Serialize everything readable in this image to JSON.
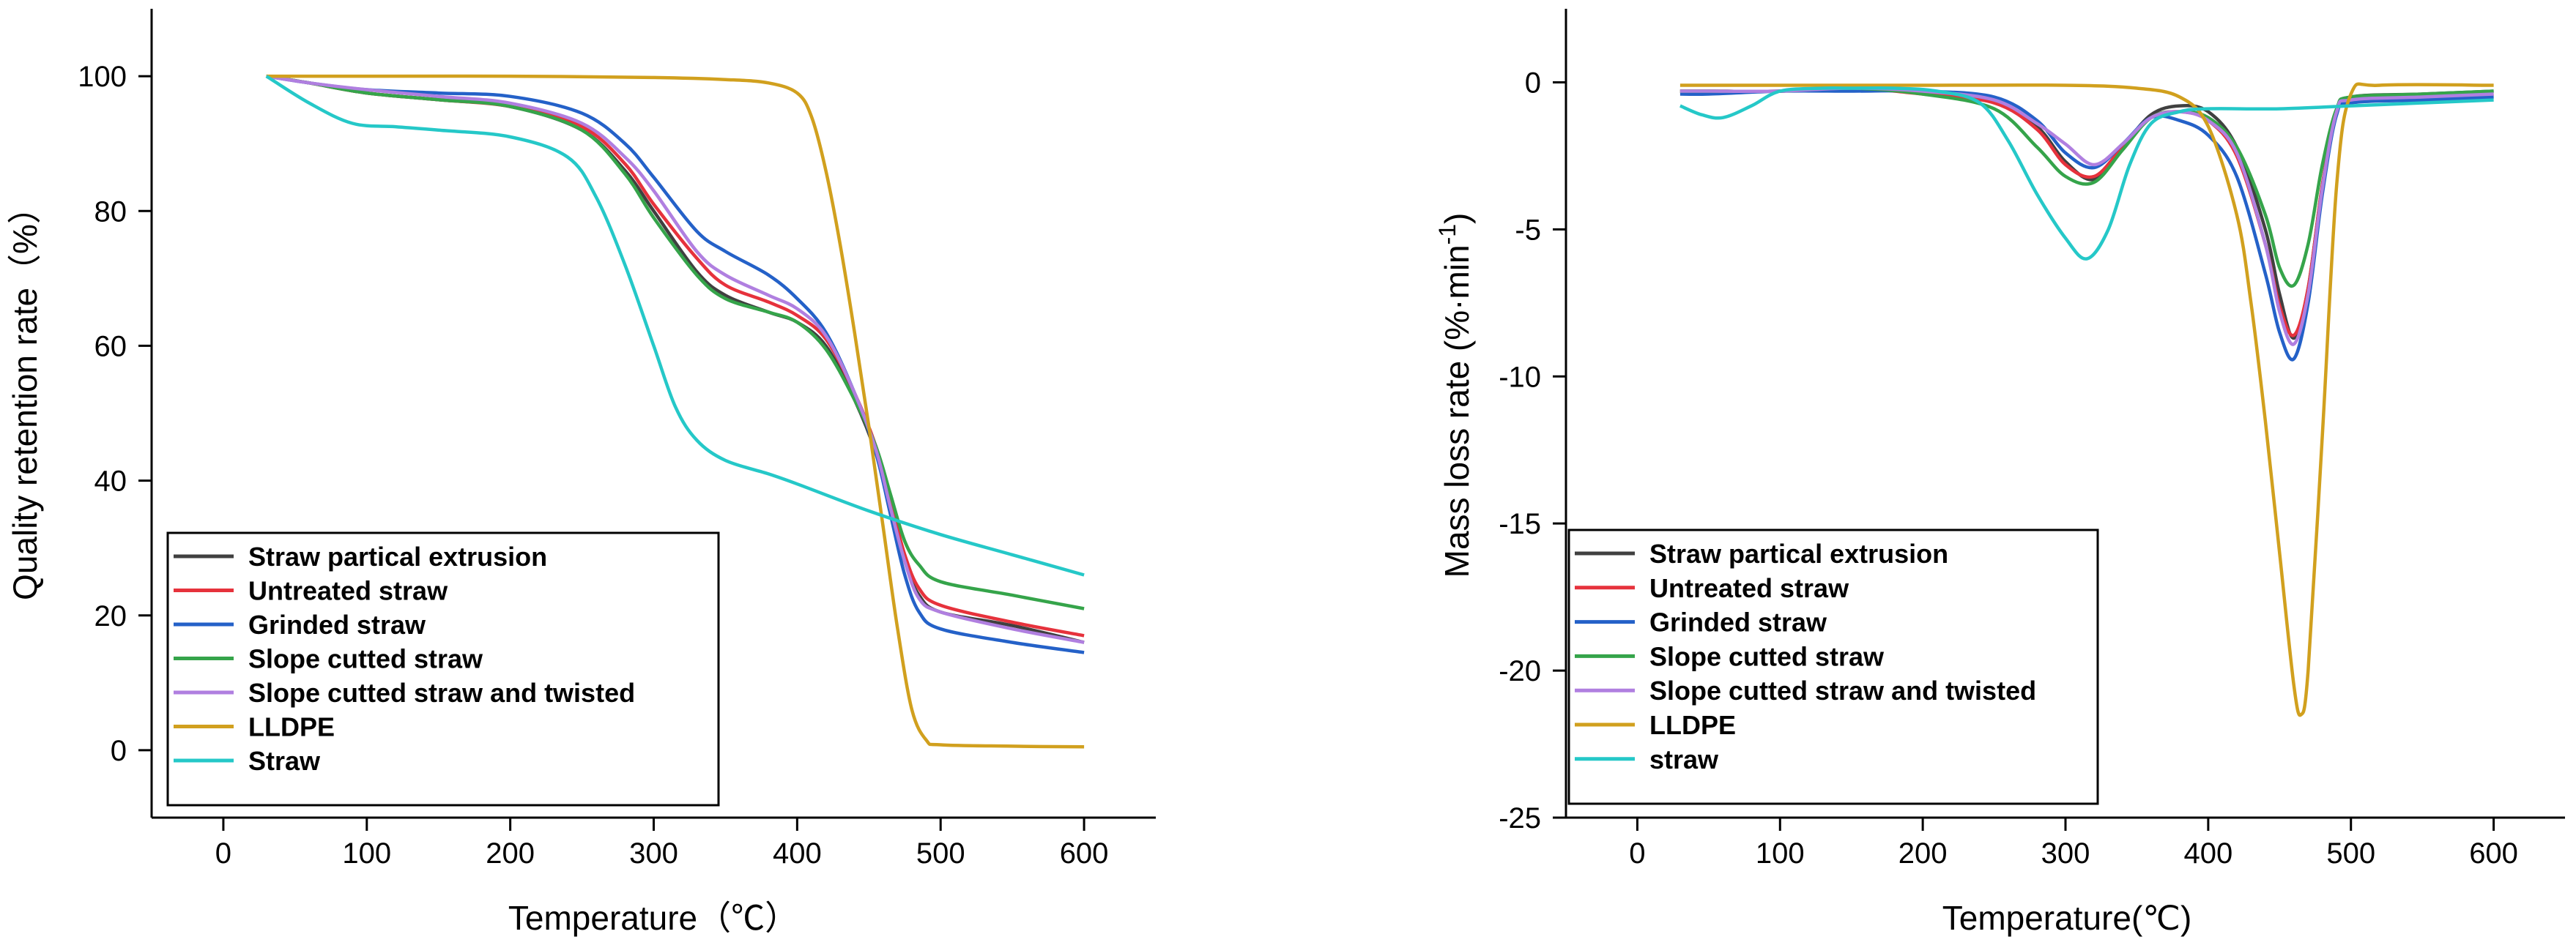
{
  "chart_data": [
    {
      "type": "line",
      "title": "",
      "xlabel": "Temperature（℃）",
      "ylabel": "Quality retention rate（%）",
      "xlim": [
        -50,
        650
      ],
      "ylim": [
        -10,
        110
      ],
      "xticks": [
        "0",
        "100",
        "200",
        "300",
        "400",
        "500",
        "600"
      ],
      "yticks": [
        "0",
        "20",
        "40",
        "60",
        "80",
        "100"
      ],
      "legend_position": "bottom-left",
      "series": [
        {
          "name": "Straw partical extrusion",
          "color": "#404040",
          "x": [
            30,
            60,
            100,
            150,
            200,
            250,
            280,
            300,
            330,
            350,
            380,
            400,
            420,
            440,
            455,
            465,
            475,
            485,
            500,
            550,
            600
          ],
          "y": [
            100,
            99,
            97.5,
            96.5,
            95.5,
            92,
            86,
            80,
            71,
            67.5,
            65,
            63.5,
            60,
            52,
            44,
            36,
            28,
            23,
            20.5,
            18.5,
            16
          ]
        },
        {
          "name": "Untreated straw",
          "color": "#e6323c",
          "x": [
            30,
            60,
            100,
            150,
            200,
            250,
            280,
            300,
            330,
            350,
            380,
            400,
            420,
            440,
            455,
            465,
            475,
            485,
            500,
            550,
            600
          ],
          "y": [
            100,
            99,
            97.5,
            96.5,
            95.5,
            92.5,
            87,
            81,
            73,
            69,
            66.5,
            64.5,
            61,
            53,
            45,
            37,
            29,
            24,
            21.5,
            19,
            17
          ]
        },
        {
          "name": "Grinded straw",
          "color": "#2461c8",
          "x": [
            30,
            60,
            100,
            150,
            200,
            250,
            280,
            300,
            330,
            350,
            380,
            400,
            420,
            440,
            455,
            465,
            475,
            485,
            500,
            550,
            600
          ],
          "y": [
            100,
            99,
            98,
            97.5,
            97,
            94.5,
            90,
            85,
            77,
            74,
            70.5,
            67,
            62,
            53,
            44,
            35,
            26,
            20.5,
            18,
            16,
            14.5
          ]
        },
        {
          "name": "Slope cutted straw",
          "color": "#35a44a",
          "x": [
            30,
            60,
            100,
            150,
            200,
            250,
            280,
            300,
            330,
            350,
            380,
            400,
            420,
            440,
            455,
            465,
            475,
            485,
            500,
            550,
            600
          ],
          "y": [
            100,
            99,
            97.5,
            96.5,
            95.5,
            92,
            85.5,
            79,
            70.5,
            67,
            65,
            63.5,
            59.5,
            52,
            45,
            38,
            31,
            27.5,
            25,
            23,
            21
          ]
        },
        {
          "name": "Slope cutted straw and twisted",
          "color": "#b07fe0",
          "x": [
            30,
            60,
            100,
            150,
            200,
            250,
            280,
            300,
            330,
            350,
            380,
            400,
            420,
            440,
            455,
            465,
            475,
            485,
            500,
            550,
            600
          ],
          "y": [
            100,
            99,
            98,
            97,
            96,
            93,
            88,
            83,
            74,
            70.5,
            67.5,
            65.5,
            61.5,
            53,
            44.5,
            36,
            28,
            22.5,
            20.5,
            18,
            16
          ]
        },
        {
          "name": "LLDPE",
          "color": "#d1a01e",
          "x": [
            30,
            100,
            200,
            300,
            350,
            380,
            400,
            410,
            420,
            430,
            440,
            450,
            460,
            470,
            480,
            490,
            500,
            550,
            600
          ],
          "y": [
            100,
            100,
            100,
            99.8,
            99.5,
            99,
            97.5,
            94,
            86,
            75,
            62,
            48,
            33,
            18,
            6,
            1.5,
            0.8,
            0.6,
            0.5
          ]
        },
        {
          "name": "Straw",
          "color": "#25c8c8",
          "x": [
            30,
            60,
            90,
            120,
            150,
            200,
            240,
            260,
            280,
            300,
            315,
            330,
            350,
            380,
            400,
            450,
            500,
            550,
            600
          ],
          "y": [
            100,
            96,
            93,
            92.5,
            92,
            91,
            88,
            82,
            72,
            60,
            51,
            46,
            43,
            41,
            39.5,
            35.5,
            32,
            29,
            26
          ]
        }
      ]
    },
    {
      "type": "line",
      "title": "",
      "xlabel": "Temperature(℃)",
      "ylabel_main": "Mass loss rate (%·min",
      "ylabel_sup": "-1",
      "ylabel_end": ")",
      "xlim": [
        -50,
        650
      ],
      "ylim": [
        -25,
        2.5
      ],
      "xticks": [
        "0",
        "100",
        "200",
        "300",
        "400",
        "500",
        "600"
      ],
      "yticks": [
        "0",
        "-5",
        "-10",
        "-15",
        "-20",
        "-25"
      ],
      "legend_position": "bottom-left",
      "series": [
        {
          "name": "Straw partical extrusion",
          "color": "#404040",
          "x": [
            30,
            50,
            100,
            150,
            200,
            250,
            280,
            300,
            320,
            340,
            360,
            380,
            400,
            420,
            440,
            450,
            460,
            470,
            480,
            490,
            500,
            550,
            600
          ],
          "y": [
            -0.3,
            -0.3,
            -0.3,
            -0.2,
            -0.3,
            -0.6,
            -1.5,
            -2.7,
            -3.3,
            -2.2,
            -1.1,
            -0.8,
            -1.0,
            -2.2,
            -5,
            -7.2,
            -8.7,
            -7,
            -3.5,
            -1,
            -0.5,
            -0.4,
            -0.3
          ]
        },
        {
          "name": "Untreated straw",
          "color": "#e6323c",
          "x": [
            30,
            50,
            100,
            150,
            200,
            250,
            280,
            300,
            320,
            340,
            360,
            380,
            400,
            420,
            440,
            450,
            460,
            470,
            480,
            490,
            500,
            550,
            600
          ],
          "y": [
            -0.3,
            -0.3,
            -0.3,
            -0.2,
            -0.4,
            -0.7,
            -1.6,
            -2.8,
            -3.2,
            -2.2,
            -1.2,
            -1.0,
            -1.3,
            -2.5,
            -5.5,
            -7.6,
            -8.6,
            -7,
            -3.5,
            -1,
            -0.6,
            -0.5,
            -0.4
          ]
        },
        {
          "name": "Grinded straw",
          "color": "#2461c8",
          "x": [
            30,
            50,
            100,
            150,
            200,
            250,
            280,
            300,
            320,
            340,
            360,
            380,
            400,
            420,
            440,
            450,
            460,
            470,
            480,
            490,
            500,
            550,
            600
          ],
          "y": [
            -0.4,
            -0.4,
            -0.3,
            -0.3,
            -0.3,
            -0.5,
            -1.3,
            -2.4,
            -2.9,
            -2.1,
            -1.2,
            -1.3,
            -1.8,
            -3.2,
            -6.5,
            -8.5,
            -9.4,
            -7.5,
            -3.8,
            -1.1,
            -0.7,
            -0.6,
            -0.5
          ]
        },
        {
          "name": "Slope cutted straw",
          "color": "#35a44a",
          "x": [
            30,
            50,
            100,
            150,
            200,
            250,
            280,
            300,
            320,
            340,
            360,
            380,
            400,
            420,
            440,
            450,
            460,
            470,
            480,
            490,
            500,
            550,
            600
          ],
          "y": [
            -0.3,
            -0.3,
            -0.3,
            -0.2,
            -0.4,
            -0.9,
            -2.2,
            -3.2,
            -3.4,
            -2.3,
            -1.2,
            -1.0,
            -1.2,
            -2.2,
            -4.5,
            -6.3,
            -6.9,
            -5.5,
            -2.8,
            -0.9,
            -0.5,
            -0.4,
            -0.3
          ]
        },
        {
          "name": "Slope cutted straw and twisted",
          "color": "#b07fe0",
          "x": [
            30,
            50,
            100,
            150,
            200,
            250,
            280,
            300,
            320,
            340,
            360,
            380,
            400,
            420,
            440,
            450,
            460,
            470,
            480,
            490,
            500,
            550,
            600
          ],
          "y": [
            -0.3,
            -0.3,
            -0.3,
            -0.2,
            -0.3,
            -0.6,
            -1.4,
            -2.1,
            -2.8,
            -2.1,
            -1.2,
            -1.0,
            -1.3,
            -2.4,
            -5.5,
            -7.8,
            -8.9,
            -7.2,
            -3.6,
            -1,
            -0.6,
            -0.5,
            -0.4
          ]
        },
        {
          "name": "LLDPE",
          "color": "#d1a01e",
          "x": [
            30,
            100,
            200,
            300,
            350,
            380,
            400,
            420,
            430,
            440,
            450,
            460,
            465,
            470,
            480,
            490,
            500,
            520,
            600
          ],
          "y": [
            -0.1,
            -0.1,
            -0.1,
            -0.1,
            -0.2,
            -0.5,
            -1.5,
            -4.5,
            -7.5,
            -11.5,
            -16,
            -20.5,
            -21.5,
            -20,
            -12,
            -3.5,
            -0.4,
            -0.1,
            -0.1
          ]
        },
        {
          "name": "straw",
          "color": "#25c8c8",
          "x": [
            30,
            45,
            60,
            80,
            100,
            130,
            150,
            180,
            210,
            240,
            260,
            280,
            300,
            315,
            330,
            345,
            360,
            380,
            400,
            450,
            500,
            550,
            600
          ],
          "y": [
            -0.8,
            -1.1,
            -1.2,
            -0.8,
            -0.3,
            -0.2,
            -0.2,
            -0.2,
            -0.3,
            -0.7,
            -2.0,
            -3.8,
            -5.3,
            -6.0,
            -5.0,
            -2.8,
            -1.4,
            -1.0,
            -0.9,
            -0.9,
            -0.8,
            -0.7,
            -0.6
          ]
        }
      ]
    }
  ]
}
